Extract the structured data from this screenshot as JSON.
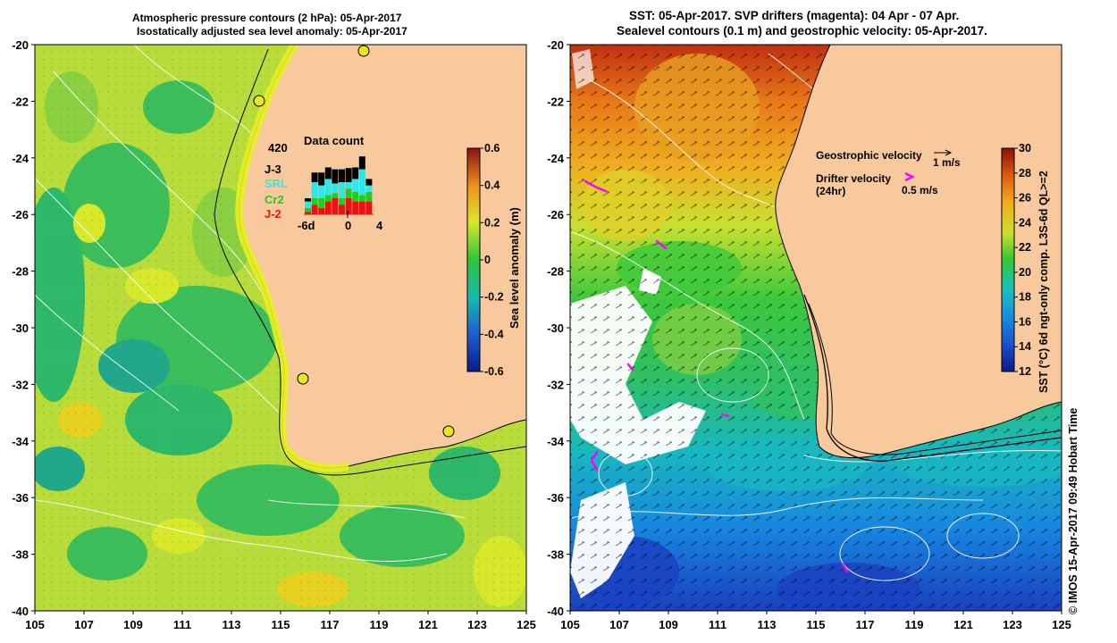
{
  "left_panel": {
    "title_line1": "Atmospheric pressure contours (2 hPa): 05-Apr-2017",
    "title_line2": "Isostatically adjusted sea level anomaly: 05-Apr-2017",
    "colorbar": {
      "label": "Sea level anomaly (m)",
      "ticks": [
        "0.6",
        "0.4",
        "0.2",
        "0",
        "-0.2",
        "-0.4",
        "-0.6"
      ],
      "range": [
        -0.6,
        0.6
      ]
    },
    "data_count": {
      "title": "Data count",
      "max_label": "420",
      "x_ticks": [
        "-6d",
        "0",
        "4"
      ],
      "legend": [
        {
          "name": "J-3",
          "color": "#000000"
        },
        {
          "name": "SRL",
          "color": "#33e6e6"
        },
        {
          "name": "Cr2",
          "color": "#22cc22"
        },
        {
          "name": "J-2",
          "color": "#ee1111"
        }
      ],
      "bars": [
        {
          "J-3": 0.05,
          "SRL": 0.1,
          "Cr2": 0.06,
          "J-2": 0.04
        },
        {
          "J-3": 0.15,
          "SRL": 0.25,
          "Cr2": 0.1,
          "J-2": 0.15
        },
        {
          "J-3": 0.2,
          "SRL": 0.2,
          "Cr2": 0.15,
          "J-2": 0.1
        },
        {
          "J-3": 0.18,
          "SRL": 0.25,
          "Cr2": 0.1,
          "J-2": 0.2
        },
        {
          "J-3": 0.22,
          "SRL": 0.15,
          "Cr2": 0.08,
          "J-2": 0.25
        },
        {
          "J-3": 0.2,
          "SRL": 0.25,
          "Cr2": 0.1,
          "J-2": 0.15
        },
        {
          "J-3": 0.22,
          "SRL": 0.1,
          "Cr2": 0.15,
          "J-2": 0.25
        },
        {
          "J-3": 0.18,
          "SRL": 0.2,
          "Cr2": 0.15,
          "J-2": 0.2
        },
        {
          "J-3": 0.2,
          "SRL": 0.4,
          "Cr2": 0.1,
          "J-2": 0.2
        },
        {
          "J-3": 0.1,
          "SRL": 0.1,
          "Cr2": 0.15,
          "J-2": 0.2
        }
      ]
    },
    "tide_gauges_markers": "yellow circles"
  },
  "right_panel": {
    "title_line1": "SST: 05-Apr-2017. SVP drifters (magenta): 04 Apr - 07 Apr.",
    "title_line2": "Sealevel contours (0.1 m) and geostrophic velocity: 05-Apr-2017.",
    "colorbar": {
      "label": "SST (°C) 6d ngt-only comp. L3S-6d QL>=2",
      "ticks": [
        "30",
        "28",
        "26",
        "24",
        "22",
        "20",
        "18",
        "16",
        "14",
        "12"
      ],
      "range": [
        12,
        30
      ]
    },
    "legend": {
      "geo_label": "Geostrophic velocity",
      "geo_scale": "1 m/s",
      "drifter_label": "Drifter velocity",
      "drifter_sub": "(24hr)",
      "drifter_scale": "0.5 m/s"
    }
  },
  "axes": {
    "lat_ticks": [
      "-20",
      "-22",
      "-24",
      "-26",
      "-28",
      "-30",
      "-32",
      "-34",
      "-36",
      "-38",
      "-40"
    ],
    "lon_ticks": [
      "105",
      "107",
      "109",
      "111",
      "113",
      "115",
      "117",
      "119",
      "121",
      "123",
      "125"
    ],
    "lat_range": [
      -40,
      -20
    ],
    "lon_range": [
      105,
      125
    ]
  },
  "copyright": "©  IMOS 15-Apr-2017 09:49 Hobart Time",
  "colors": {
    "land": "#f8c99c",
    "coast": "#000000",
    "drifter": "#ff00ff",
    "contour": "#ffffff"
  }
}
